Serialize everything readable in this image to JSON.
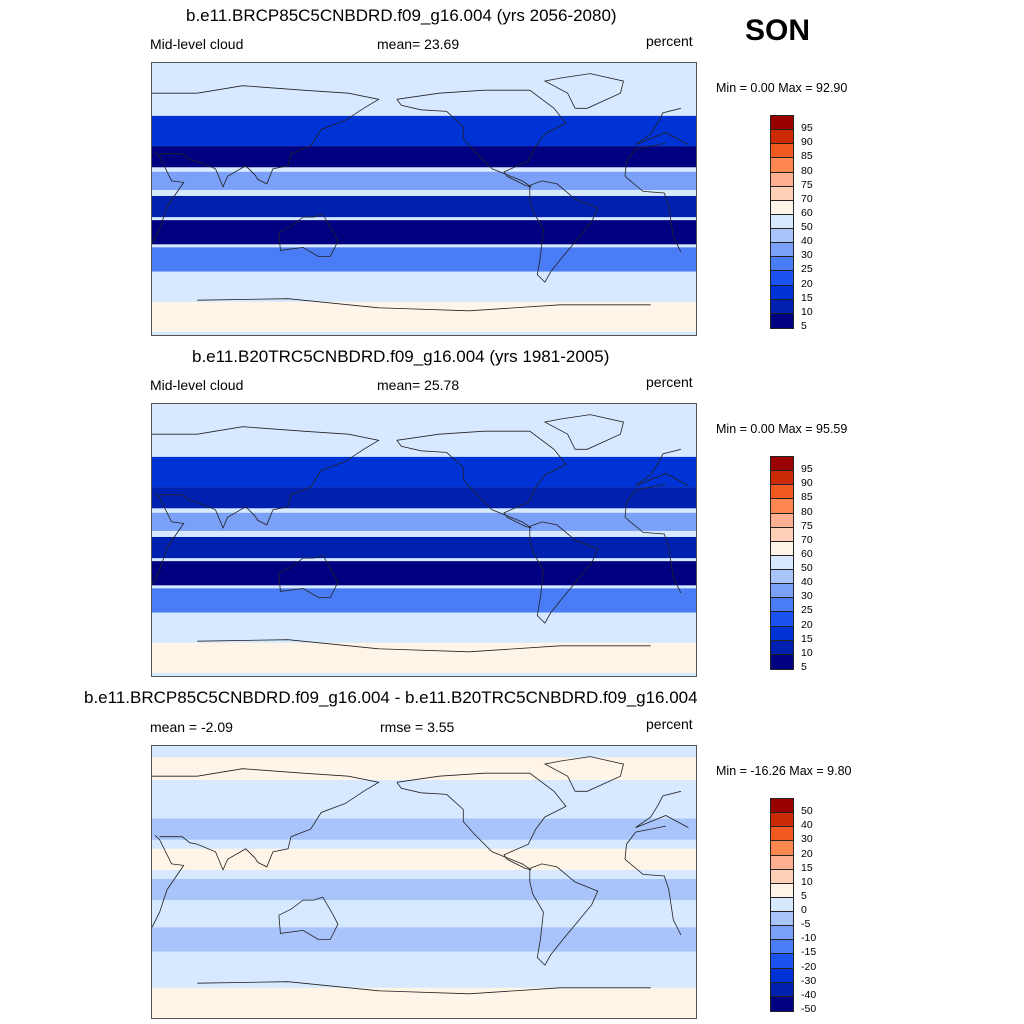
{
  "season": "SON",
  "panels": [
    {
      "title": "b.e11.BRCP85C5CNBDRD.f09_g16.004 (yrs 2056-2080)",
      "left_label": "Mid-level cloud",
      "center_label": "mean=  23.69",
      "right_label": "percent",
      "minmax": "Min =   0.00 Max =  92.90",
      "kind": "abs",
      "field_bands": [
        {
          "lat": 70,
          "height_deg": 20,
          "value": 45
        },
        {
          "lat": 45,
          "height_deg": 20,
          "value": 12
        },
        {
          "lat": 28,
          "height_deg": 14,
          "value": 4
        },
        {
          "lat": 12,
          "height_deg": 12,
          "value": 25
        },
        {
          "lat": -5,
          "height_deg": 14,
          "value": 8
        },
        {
          "lat": -22,
          "height_deg": 16,
          "value": 3
        },
        {
          "lat": -40,
          "height_deg": 16,
          "value": 22
        },
        {
          "lat": -58,
          "height_deg": 18,
          "value": 45
        },
        {
          "lat": -78,
          "height_deg": 20,
          "value": 55
        }
      ],
      "colorbar_labels": [
        "95",
        "90",
        "85",
        "80",
        "75",
        "70",
        "60",
        "50",
        "40",
        "30",
        "25",
        "20",
        "15",
        "10",
        "5"
      ]
    },
    {
      "title": "b.e11.B20TRC5CNBDRD.f09_g16.004 (yrs 1981-2005)",
      "left_label": "Mid-level cloud",
      "center_label": "mean=  25.78",
      "right_label": "percent",
      "minmax": "Min =   0.00 Max =  95.59",
      "kind": "abs",
      "field_bands": [
        {
          "lat": 70,
          "height_deg": 20,
          "value": 45
        },
        {
          "lat": 45,
          "height_deg": 20,
          "value": 14
        },
        {
          "lat": 28,
          "height_deg": 14,
          "value": 5
        },
        {
          "lat": 12,
          "height_deg": 12,
          "value": 27
        },
        {
          "lat": -5,
          "height_deg": 14,
          "value": 9
        },
        {
          "lat": -22,
          "height_deg": 16,
          "value": 3
        },
        {
          "lat": -40,
          "height_deg": 16,
          "value": 24
        },
        {
          "lat": -58,
          "height_deg": 18,
          "value": 48
        },
        {
          "lat": -78,
          "height_deg": 20,
          "value": 55
        }
      ],
      "colorbar_labels": [
        "95",
        "90",
        "85",
        "80",
        "75",
        "70",
        "60",
        "50",
        "40",
        "30",
        "25",
        "20",
        "15",
        "10",
        "5"
      ]
    },
    {
      "title": "b.e11.BRCP85C5CNBDRD.f09_g16.004 - b.e11.B20TRC5CNBDRD.f09_g16.004",
      "left_label": "mean =  -2.09",
      "center_label": "rmse =   3.55",
      "right_label": "percent",
      "minmax": "Min = -16.26 Max =   9.80",
      "kind": "diff",
      "field_bands": [
        {
          "lat": 75,
          "height_deg": 15,
          "value": 3
        },
        {
          "lat": 55,
          "height_deg": 20,
          "value": -3
        },
        {
          "lat": 35,
          "height_deg": 14,
          "value": -8
        },
        {
          "lat": 15,
          "height_deg": 14,
          "value": 2
        },
        {
          "lat": -5,
          "height_deg": 14,
          "value": -6
        },
        {
          "lat": -20,
          "height_deg": 14,
          "value": -2
        },
        {
          "lat": -38,
          "height_deg": 16,
          "value": -10
        },
        {
          "lat": -58,
          "height_deg": 18,
          "value": -4
        },
        {
          "lat": -80,
          "height_deg": 20,
          "value": 4
        }
      ],
      "colorbar_labels": [
        "50",
        "40",
        "30",
        "20",
        "15",
        "10",
        "5",
        "0",
        "-5",
        "-10",
        "-15",
        "-20",
        "-30",
        "-40",
        "-50"
      ]
    }
  ],
  "palette": [
    "#000080",
    "#0020b0",
    "#0033d6",
    "#1a53f0",
    "#4a7cf5",
    "#7aa0f7",
    "#a9c4fa",
    "#d6e9ff",
    "#fff4e8",
    "#ffd0b8",
    "#ffb090",
    "#ff8850",
    "#f05a20",
    "#cc2a05",
    "#990000"
  ]
}
